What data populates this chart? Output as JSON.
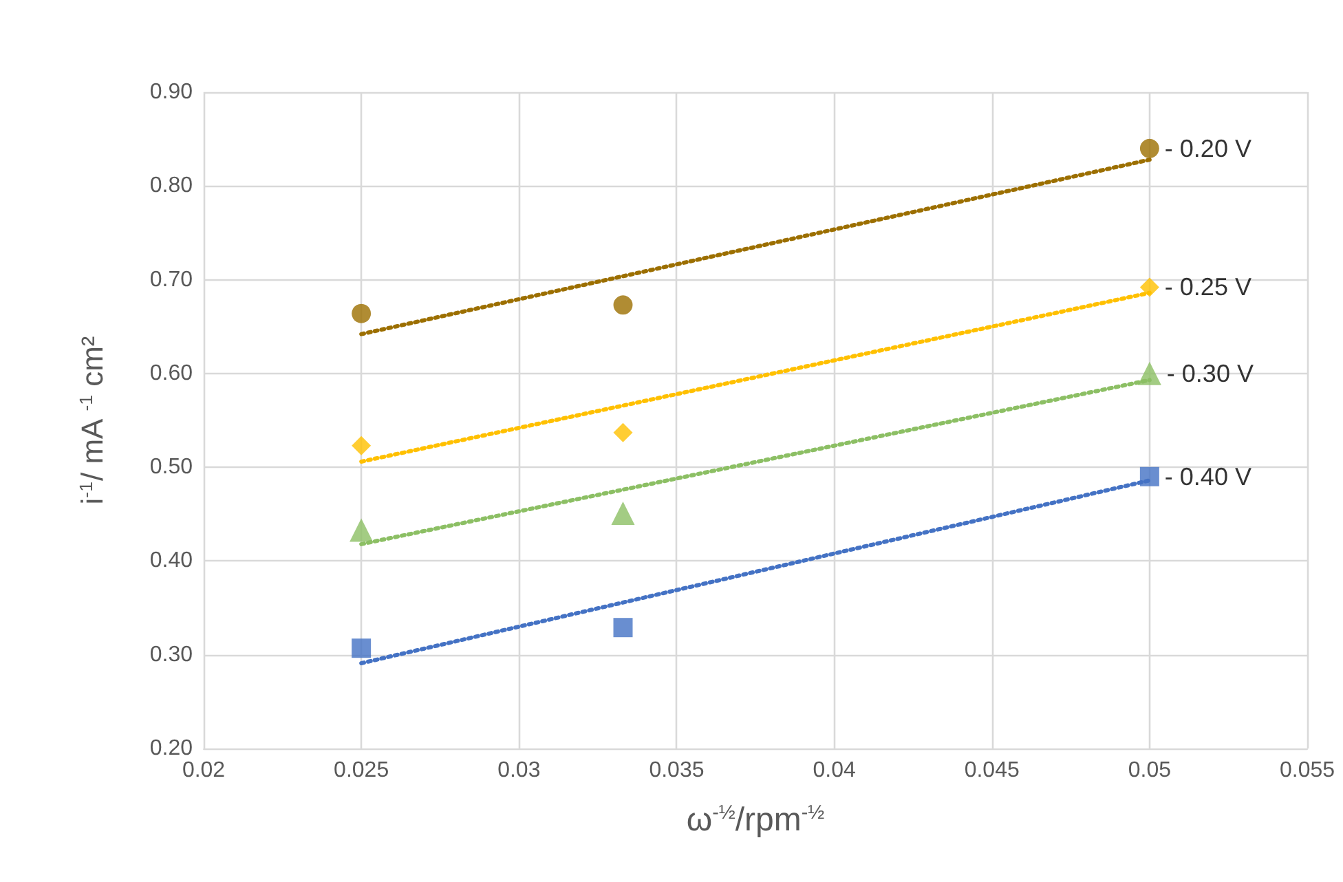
{
  "chart_data": {
    "type": "scatter",
    "xlabel": "ω$^{-½}$/rpm$^{-½}$",
    "ylabel": "i$^{-1}$/ mA $^{-1}$ cm²",
    "xlim": [
      0.02,
      0.055
    ],
    "xticks": [
      0.02,
      0.025,
      0.03,
      0.035,
      0.04,
      0.045,
      0.05,
      0.055
    ],
    "ylim": [
      0.2,
      0.9
    ],
    "yticks": [
      {
        "value": 0.2,
        "label": "0.20"
      },
      {
        "value": 0.3,
        "label": "0.30"
      },
      {
        "value": 0.4,
        "label": "0.40"
      },
      {
        "value": 0.5,
        "label": "0.50"
      },
      {
        "value": 0.6,
        "label": "0.60"
      },
      {
        "value": 0.7,
        "label": "0.70"
      },
      {
        "value": 0.8,
        "label": "0.80"
      },
      {
        "value": 0.9,
        "label": "0.90"
      }
    ],
    "grid": true,
    "legend": false,
    "series": [
      {
        "name": "- 0.20 V",
        "color": "#9c6f00",
        "marker": "circle",
        "x": [
          0.025,
          0.0333,
          0.05
        ],
        "values": [
          0.664,
          0.673,
          0.84
        ]
      },
      {
        "name": "- 0.25 V",
        "color": "#ffc000",
        "marker": "diamond",
        "x": [
          0.025,
          0.0333,
          0.05
        ],
        "values": [
          0.523,
          0.537,
          0.692
        ]
      },
      {
        "name": "- 0.30 V",
        "color": "#8cbf64",
        "marker": "triangle",
        "x": [
          0.025,
          0.0333,
          0.05
        ],
        "values": [
          0.433,
          0.451,
          0.6
        ]
      },
      {
        "name": "- 0.40 V",
        "color": "#4472c4",
        "marker": "square",
        "x": [
          0.025,
          0.0333,
          0.05
        ],
        "values": [
          0.307,
          0.329,
          0.49
        ]
      },
      {
        "type": "line",
        "color": "#9c6f00",
        "line_style": "dotted",
        "marker": "none",
        "x": [
          0.025,
          0.05
        ],
        "values": [
          0.642,
          0.828
        ]
      },
      {
        "type": "line",
        "color": "#ffc000",
        "line_style": "dotted",
        "marker": "none",
        "x": [
          0.025,
          0.05
        ],
        "values": [
          0.506,
          0.686
        ]
      },
      {
        "type": "line",
        "color": "#8cbf64",
        "line_style": "dotted",
        "marker": "none",
        "x": [
          0.025,
          0.05
        ],
        "values": [
          0.418,
          0.593
        ]
      },
      {
        "type": "line",
        "color": "#4472c4",
        "line_style": "dotted",
        "marker": "none",
        "x": [
          0.025,
          0.05
        ],
        "values": [
          0.291,
          0.486
        ]
      }
    ]
  }
}
